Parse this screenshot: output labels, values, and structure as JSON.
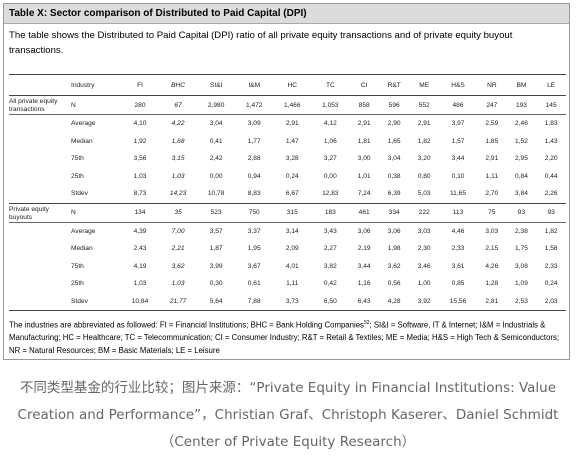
{
  "header": {
    "title": "Table X: Sector comparison of Distributed to Paid Capital (DPI)",
    "description": "The table shows the Distributed to Paid Capital (DPI) ratio of all private equity transactions and of private equity buyout transactions."
  },
  "table": {
    "columns": [
      "Industry",
      "FI",
      "BHC",
      "SI&I",
      "I&M",
      "HC",
      "TC",
      "CI",
      "R&T",
      "ME",
      "H&S",
      "NR",
      "BM",
      "LE"
    ],
    "groups": [
      {
        "label": "All private equity transactions",
        "rows": [
          [
            "N",
            "280",
            "67",
            "2,980",
            "1,472",
            "1,466",
            "1,053",
            "858",
            "596",
            "552",
            "486",
            "247",
            "193",
            "145"
          ],
          [
            "Average",
            "4,10",
            "4,22",
            "3,04",
            "3,09",
            "2,91",
            "4,12",
            "2,91",
            "2,90",
            "2,91",
            "3,97",
            "2,59",
            "2,46",
            "1,83"
          ],
          [
            "Median",
            "1,92",
            "1,68",
            "0,41",
            "1,77",
            "1,47",
            "1,06",
            "1,81",
            "1,65",
            "1,82",
            "1,57",
            "1,85",
            "1,52",
            "1,43"
          ],
          [
            "75th",
            "3,56",
            "3,15",
            "2,42",
            "2,88",
            "3,28",
            "3,27",
            "3,00",
            "3,04",
            "3,20",
            "3,44",
            "2,91",
            "2,95",
            "2,20"
          ],
          [
            "25th",
            "1,03",
            "1,03",
            "0,00",
            "0,94",
            "0,24",
            "0,00",
            "1,01",
            "0,38",
            "0,80",
            "0,10",
            "1,11",
            "0,84",
            "0,44"
          ],
          [
            "Stdev",
            "8,73",
            "14,23",
            "10,78",
            "8,83",
            "6,67",
            "12,83",
            "7,24",
            "6,39",
            "5,03",
            "11,65",
            "2,70",
            "3,84",
            "2,26"
          ]
        ]
      },
      {
        "label": "Private equity buyouts",
        "rows": [
          [
            "N",
            "134",
            "35",
            "523",
            "750",
            "315",
            "183",
            "461",
            "334",
            "222",
            "113",
            "75",
            "93",
            "93"
          ],
          [
            "Average",
            "4,39",
            "7,00",
            "3,57",
            "3,37",
            "3,14",
            "3,43",
            "3,06",
            "3,06",
            "3,03",
            "4,46",
            "3,03",
            "2,38",
            "1,82"
          ],
          [
            "Median",
            "2,43",
            "2,21",
            "1,87",
            "1,95",
            "2,09",
            "2,27",
            "2,19",
            "1,98",
            "2,30",
            "2,33",
            "2,15",
            "1,75",
            "1,58"
          ],
          [
            "75th",
            "4,19",
            "3,62",
            "3,99",
            "3,67",
            "4,01",
            "3,82",
            "3,44",
            "3,62",
            "3,46",
            "3,61",
            "4,26",
            "3,08",
            "2,33"
          ],
          [
            "25th",
            "1,03",
            "1,03",
            "0,30",
            "0,61",
            "1,11",
            "0,42",
            "1,16",
            "0,56",
            "1,00",
            "0,85",
            "1,28",
            "1,09",
            "0,24"
          ],
          [
            "Stdev",
            "10,84",
            "21,77",
            "5,64",
            "7,88",
            "3,73",
            "6,50",
            "6,43",
            "4,28",
            "3,92",
            "15,56",
            "2,81",
            "2,53",
            "2,03"
          ]
        ]
      }
    ]
  },
  "footnote": {
    "before": "The industries are abbreviated as followed: FI = Financial Institutions; BHC = Bank Holding Companies",
    "sup": "52",
    "after": "; SI&I = Software, IT & Internet; I&M = Industrials & Manufacturing; HC = Healthcare; TC = Telecommunication; CI = Consumer Industry; R&T = Retail & Textiles; ME = Media; H&S = High Tech & Semiconductors; NR = Natural Resources; BM = Basic Materials; LE = Leisure"
  },
  "caption": "不同类型基金的行业比较；图片来源：“Private Equity in Financial Institutions: Value Creation and Performance”，Christian Graf、Christoph Kaserer、Daniel Schmidt（Center of Private Equity Research）"
}
